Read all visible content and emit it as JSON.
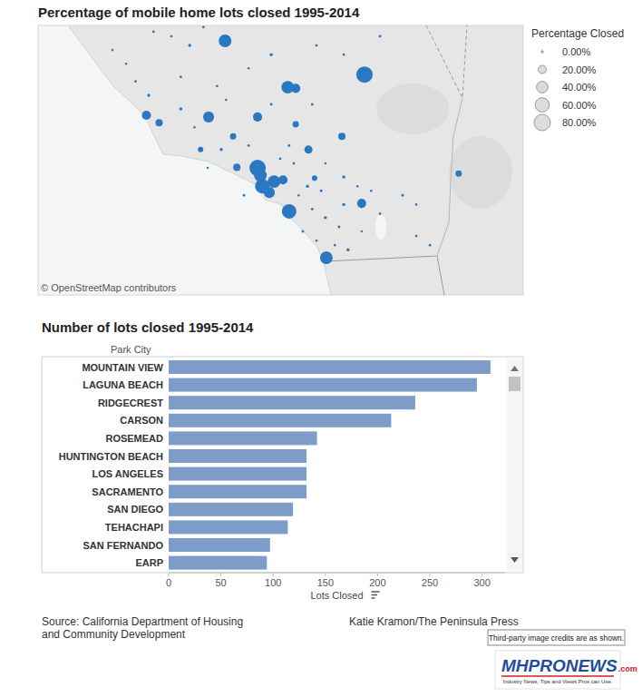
{
  "chart_data": [
    {
      "type": "bubble",
      "title": "Percentage of mobile home lots closed 1995-2014",
      "color": "#2b78c2",
      "tick_labels": false,
      "xlim": [
        -123.2,
        -112.9
      ],
      "ylim": [
        32.07,
        36.78
      ],
      "x": [
        -119.23,
        -116.27,
        -117.9,
        -117.73,
        -120.9,
        -120.63,
        -119.58,
        -118.54,
        -117.73,
        -119.06,
        -116.75,
        -119.75,
        -117.46,
        -118.98,
        -118.54,
        -118.48,
        -118.44,
        -118.19,
        -118.0,
        -118.29,
        -117.87,
        -116.33,
        -117.08,
        -114.27,
        -117.33,
        -120.75,
        -120.37,
        -119.98,
        -119.69,
        -121.33,
        -121.13,
        -120.85,
        -121.62,
        -120.17,
        -119.4,
        -118.73,
        -118.25,
        -117.29,
        -116.71,
        -115.94,
        -120.17,
        -119.21,
        -118.25,
        -117.38,
        -119.88,
        -119.31,
        -118.73,
        -117.87,
        -117.1,
        -116.71,
        -118.83,
        -117.67,
        -117.38,
        -117.1,
        -116.81,
        -116.33,
        -115.94,
        -115.46,
        -115.17,
        -116.71,
        -117.58,
        -117.29,
        -116.9,
        -116.62,
        -118.06,
        -119.6,
        -115.17,
        -114.88,
        -116.42,
        -117.48,
        -117.77,
        -117.19,
        -116.13
      ],
      "values": [
        36.51,
        35.92,
        35.7,
        35.68,
        35.21,
        35.08,
        35.18,
        35.18,
        35.05,
        34.84,
        34.84,
        34.61,
        34.61,
        34.3,
        34.29,
        34.16,
        33.97,
        34.05,
        34.08,
        33.86,
        33.53,
        33.67,
        32.72,
        34.19,
        34.11,
        36.67,
        36.59,
        36.43,
        36.75,
        36.11,
        35.8,
        35.56,
        36.35,
        35.88,
        35.72,
        36.03,
        36.27,
        36.43,
        36.27,
        36.59,
        35.32,
        35.48,
        35.4,
        35.4,
        35.0,
        34.61,
        34.68,
        34.68,
        34.37,
        34.13,
        33.81,
        33.81,
        33.57,
        33.42,
        33.26,
        33.18,
        33.49,
        33.81,
        33.65,
        33.65,
        33.18,
        33.02,
        32.94,
        32.86,
        34.45,
        34.29,
        33.1,
        32.94,
        33.97,
        33.97,
        34.37,
        33.89,
        33.89
      ],
      "sizes": [
        48,
        80,
        48,
        25,
        25,
        16,
        36,
        25,
        12,
        12,
        16,
        9,
        20,
        16,
        80,
        48,
        63,
        48,
        25,
        36,
        63,
        25,
        48,
        12,
        9,
        2,
        1,
        3,
        2,
        1,
        2,
        3,
        1,
        2,
        2,
        1,
        3,
        2,
        1,
        2,
        3,
        1,
        2,
        2,
        1,
        3,
        2,
        2,
        1,
        3,
        2,
        1,
        2,
        3,
        2,
        1,
        2,
        2,
        1,
        3,
        2,
        2,
        1,
        3,
        2,
        1,
        2,
        2,
        1,
        3,
        2,
        2,
        1
      ],
      "size_title": "Percentage Closed",
      "size_ticks": [
        {
          "value": 0,
          "label": "0.00%"
        },
        {
          "value": 20,
          "label": "20.00%"
        },
        {
          "value": 40,
          "label": "40.00%"
        },
        {
          "value": 60,
          "label": "60.00%"
        },
        {
          "value": 80,
          "label": "80.00%"
        }
      ],
      "annotations": [
        "© OpenStreetMap contributors"
      ]
    },
    {
      "type": "bar",
      "orientation": "horizontal",
      "title": "Number of lots closed 1995-2014",
      "ylabel": "Park City",
      "xlabel": "Lots Closed",
      "color": "#7d9cc8",
      "grid": false,
      "categories": [
        "MOUNTAIN VIEW",
        "LAGUNA BEACH",
        "RIDGECREST",
        "CARSON",
        "ROSEMEAD",
        "HUNTINGTON BEACH",
        "LOS ANGELES",
        "SACRAMENTO",
        "SAN DIEGO",
        "TEHACHAPI",
        "SAN FERNANDO",
        "EARP"
      ],
      "values": [
        308,
        295,
        236,
        213,
        142,
        132,
        132,
        132,
        119,
        114,
        97,
        94
      ],
      "xlim": [
        0,
        322
      ],
      "xticks": [
        0,
        50,
        100,
        150,
        200,
        250,
        300
      ],
      "annotations": [
        "Source: California Department of Housing",
        "and Community Development",
        "Katie Kramon/The Peninsula Press"
      ]
    }
  ],
  "watermark": {
    "note": "Third-party image credits are as shown.",
    "logo": "MHPRONEWS",
    "logo_suffix": ".com",
    "tagline": "Industry News, Tips and Views Pros can Use."
  }
}
